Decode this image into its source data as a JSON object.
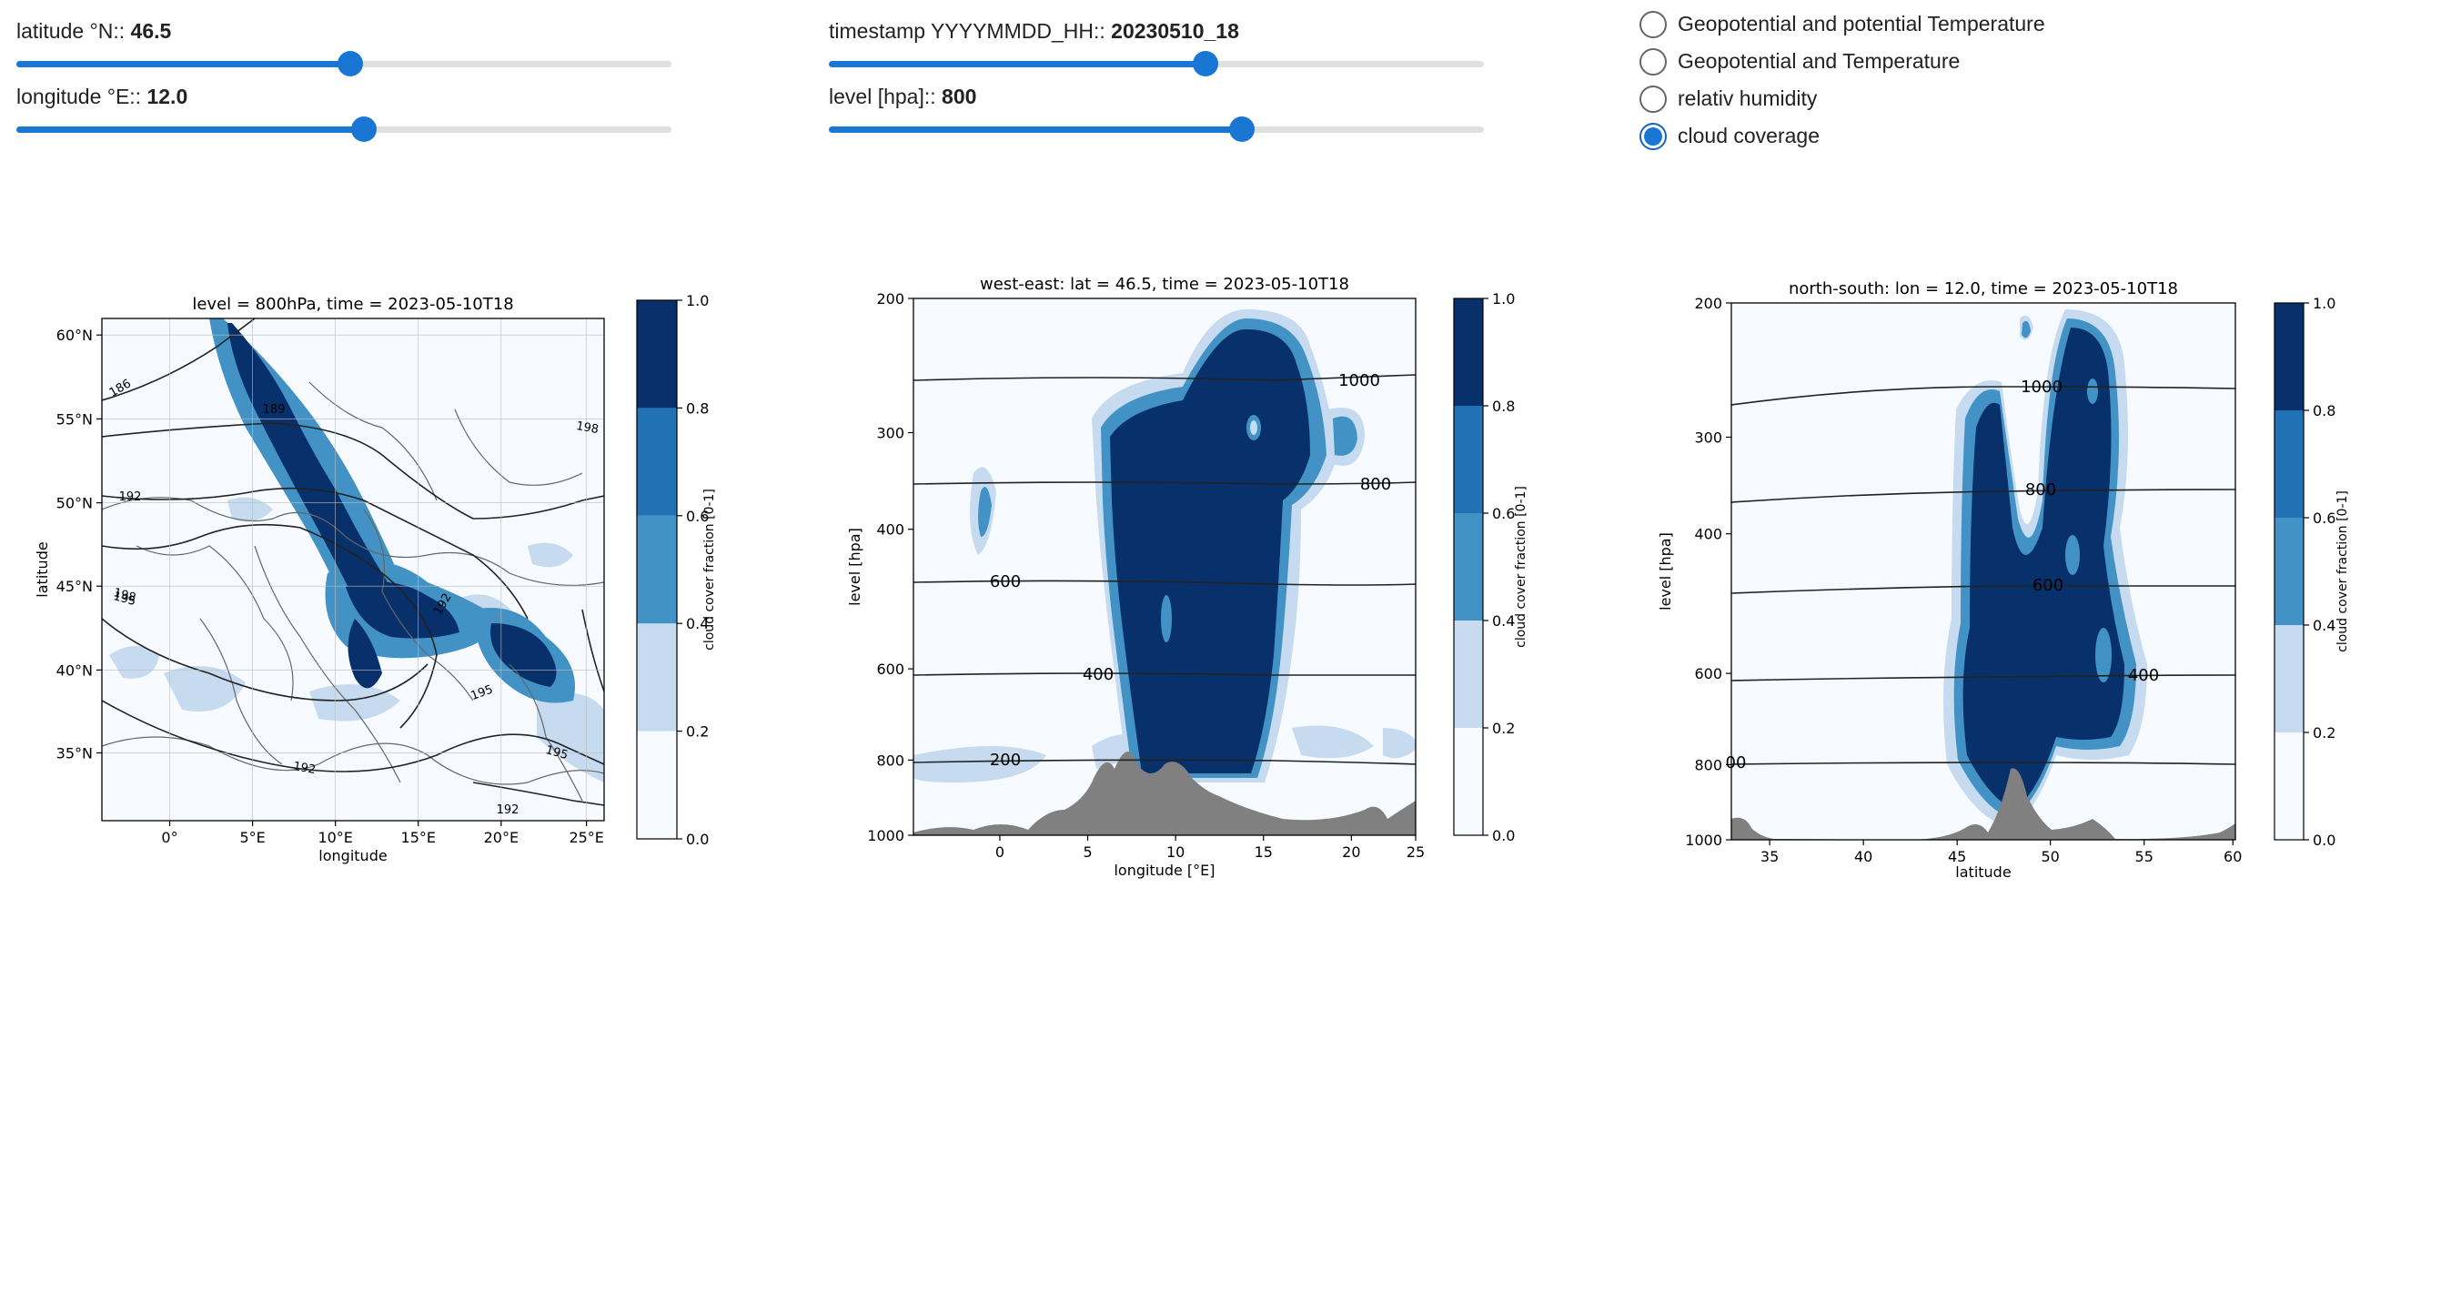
{
  "sliders": {
    "latitude": {
      "label": "latitude °N::",
      "value": "46.5",
      "fraction": 0.51
    },
    "longitude": {
      "label": "longitude °E::",
      "value": "12.0",
      "fraction": 0.53
    },
    "timestamp": {
      "label": "timestamp YYYYMMDD_HH::",
      "value": "20230510_18",
      "fraction": 0.575
    },
    "level": {
      "label": "level [hpa]::",
      "value": "800",
      "fraction": 0.63
    }
  },
  "variable_radio": {
    "options": [
      {
        "label": "Geopotential and potential Temperature",
        "selected": false
      },
      {
        "label": "Geopotential and Temperature",
        "selected": false
      },
      {
        "label": "relativ humidity",
        "selected": false
      },
      {
        "label": "cloud coverage",
        "selected": true
      }
    ]
  },
  "colors": {
    "accent": "#1976d2",
    "cloud_levels": [
      "#f7fbff",
      "#c6dbef",
      "#4292c6",
      "#2171b5",
      "#08306b"
    ],
    "terrain": "#808080"
  },
  "plots": {
    "map": {
      "title": "level = 800hPa, time = 2023-05-10T18",
      "xlabel": "longitude",
      "ylabel": "latitude",
      "colorbar_label": "cloud cover fraction [0-1]",
      "x_ticks": [
        "0°",
        "5°E",
        "10°E",
        "15°E",
        "20°E",
        "25°E"
      ],
      "y_ticks": [
        "35°N",
        "40°N",
        "45°N",
        "50°N",
        "55°N",
        "60°N"
      ],
      "contour_labels": [
        "186",
        "189",
        "192",
        "195",
        "198",
        "192",
        "198",
        "192",
        "195",
        "195",
        "192"
      ]
    },
    "west_east": {
      "title": "west-east: lat = 46.5, time = 2023-05-10T18",
      "xlabel": "longitude [°E]",
      "ylabel": "level [hpa]",
      "colorbar_label": "cloud cover fraction [0-1]",
      "x_ticks": [
        "0",
        "5",
        "10",
        "15",
        "20",
        "25"
      ],
      "y_ticks": [
        "200",
        "300",
        "400",
        "600",
        "800",
        "1000"
      ],
      "contour_labels": [
        "1000",
        "800",
        "600",
        "400",
        "200"
      ]
    },
    "north_south": {
      "title": "north-south: lon = 12.0, time = 2023-05-10T18",
      "xlabel": "latitude",
      "ylabel": "level [hpa]",
      "colorbar_label": "cloud cover fraction [0-1]",
      "x_ticks": [
        "35",
        "40",
        "45",
        "50",
        "55",
        "60"
      ],
      "y_ticks": [
        "200",
        "300",
        "400",
        "600",
        "800",
        "1000"
      ],
      "contour_labels": [
        "1000",
        "800",
        "600",
        "400",
        "00"
      ]
    },
    "colorbar_ticks": [
      "1.0",
      "0.8",
      "0.6",
      "0.4",
      "0.2",
      "0.0"
    ]
  }
}
